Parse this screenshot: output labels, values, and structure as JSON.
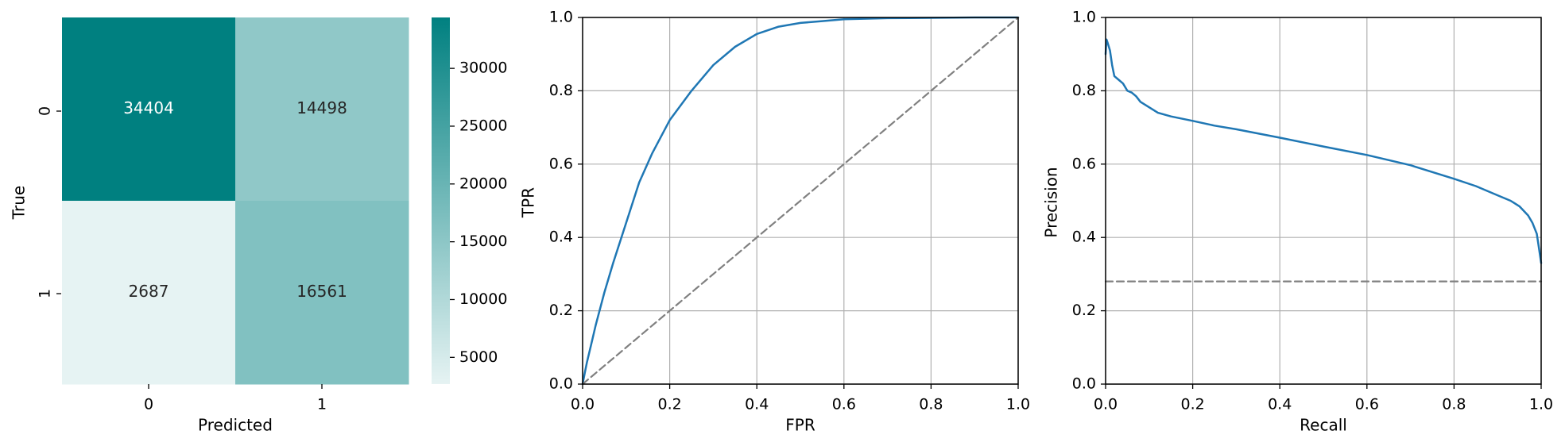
{
  "figure": {
    "background": "#ffffff"
  },
  "chart_data": [
    {
      "type": "heatmap",
      "xlabel": "Predicted",
      "ylabel": "True",
      "x_categories": [
        "0",
        "1"
      ],
      "y_categories": [
        "0",
        "1"
      ],
      "matrix": [
        [
          34404,
          14498
        ],
        [
          2687,
          16561
        ]
      ],
      "colormap": {
        "low": "#e6f3f3",
        "high": "#008080"
      },
      "colorbar": {
        "min": 2687,
        "max": 34404,
        "ticks": [
          5000,
          10000,
          15000,
          20000,
          25000,
          30000
        ],
        "tick_labels": [
          "5000",
          "10000",
          "15000",
          "20000",
          "25000",
          "30000"
        ]
      },
      "annotation_colors": {
        "light": "#ffffff",
        "dark": "#262626"
      }
    },
    {
      "type": "line",
      "xlabel": "FPR",
      "ylabel": "TPR",
      "xlim": [
        0,
        1
      ],
      "ylim": [
        0,
        1
      ],
      "x_ticks": [
        "0.0",
        "0.2",
        "0.4",
        "0.6",
        "0.8",
        "1.0"
      ],
      "y_ticks": [
        "0.0",
        "0.2",
        "0.4",
        "0.6",
        "0.8",
        "1.0"
      ],
      "grid": true,
      "series": [
        {
          "color": "#1f77b4",
          "style": "solid",
          "x": [
            0,
            0.005,
            0.01,
            0.02,
            0.03,
            0.05,
            0.07,
            0.1,
            0.13,
            0.16,
            0.2,
            0.25,
            0.3,
            0.35,
            0.4,
            0.45,
            0.5,
            0.55,
            0.6,
            0.7,
            0.8,
            0.9,
            1.0
          ],
          "y": [
            0,
            0.03,
            0.06,
            0.11,
            0.16,
            0.25,
            0.33,
            0.44,
            0.55,
            0.63,
            0.72,
            0.8,
            0.87,
            0.92,
            0.955,
            0.975,
            0.985,
            0.99,
            0.995,
            0.998,
            0.999,
            1.0,
            1.0
          ]
        },
        {
          "color": "#808080",
          "style": "dashed",
          "x": [
            0,
            1
          ],
          "y": [
            0,
            1
          ]
        }
      ]
    },
    {
      "type": "line",
      "xlabel": "Recall",
      "ylabel": "Precision",
      "xlim": [
        0,
        1
      ],
      "ylim": [
        0,
        1
      ],
      "x_ticks": [
        "0.0",
        "0.2",
        "0.4",
        "0.6",
        "0.8",
        "1.0"
      ],
      "y_ticks": [
        "0.0",
        "0.2",
        "0.4",
        "0.6",
        "0.8",
        "1.0"
      ],
      "grid": true,
      "series": [
        {
          "color": "#1f77b4",
          "style": "solid",
          "x": [
            0,
            0.002,
            0.005,
            0.01,
            0.015,
            0.02,
            0.03,
            0.04,
            0.05,
            0.06,
            0.07,
            0.08,
            0.1,
            0.12,
            0.15,
            0.2,
            0.25,
            0.3,
            0.4,
            0.5,
            0.6,
            0.7,
            0.8,
            0.85,
            0.9,
            0.93,
            0.95,
            0.97,
            0.98,
            0.99,
            0.995,
            1.0
          ],
          "y": [
            0.9,
            0.94,
            0.93,
            0.91,
            0.87,
            0.84,
            0.83,
            0.82,
            0.8,
            0.795,
            0.785,
            0.77,
            0.755,
            0.74,
            0.73,
            0.718,
            0.705,
            0.695,
            0.672,
            0.648,
            0.625,
            0.597,
            0.56,
            0.54,
            0.515,
            0.5,
            0.485,
            0.46,
            0.44,
            0.41,
            0.37,
            0.33
          ]
        },
        {
          "color": "#808080",
          "style": "dashed",
          "x": [
            0,
            1
          ],
          "y": [
            0.28,
            0.28
          ]
        }
      ]
    }
  ]
}
